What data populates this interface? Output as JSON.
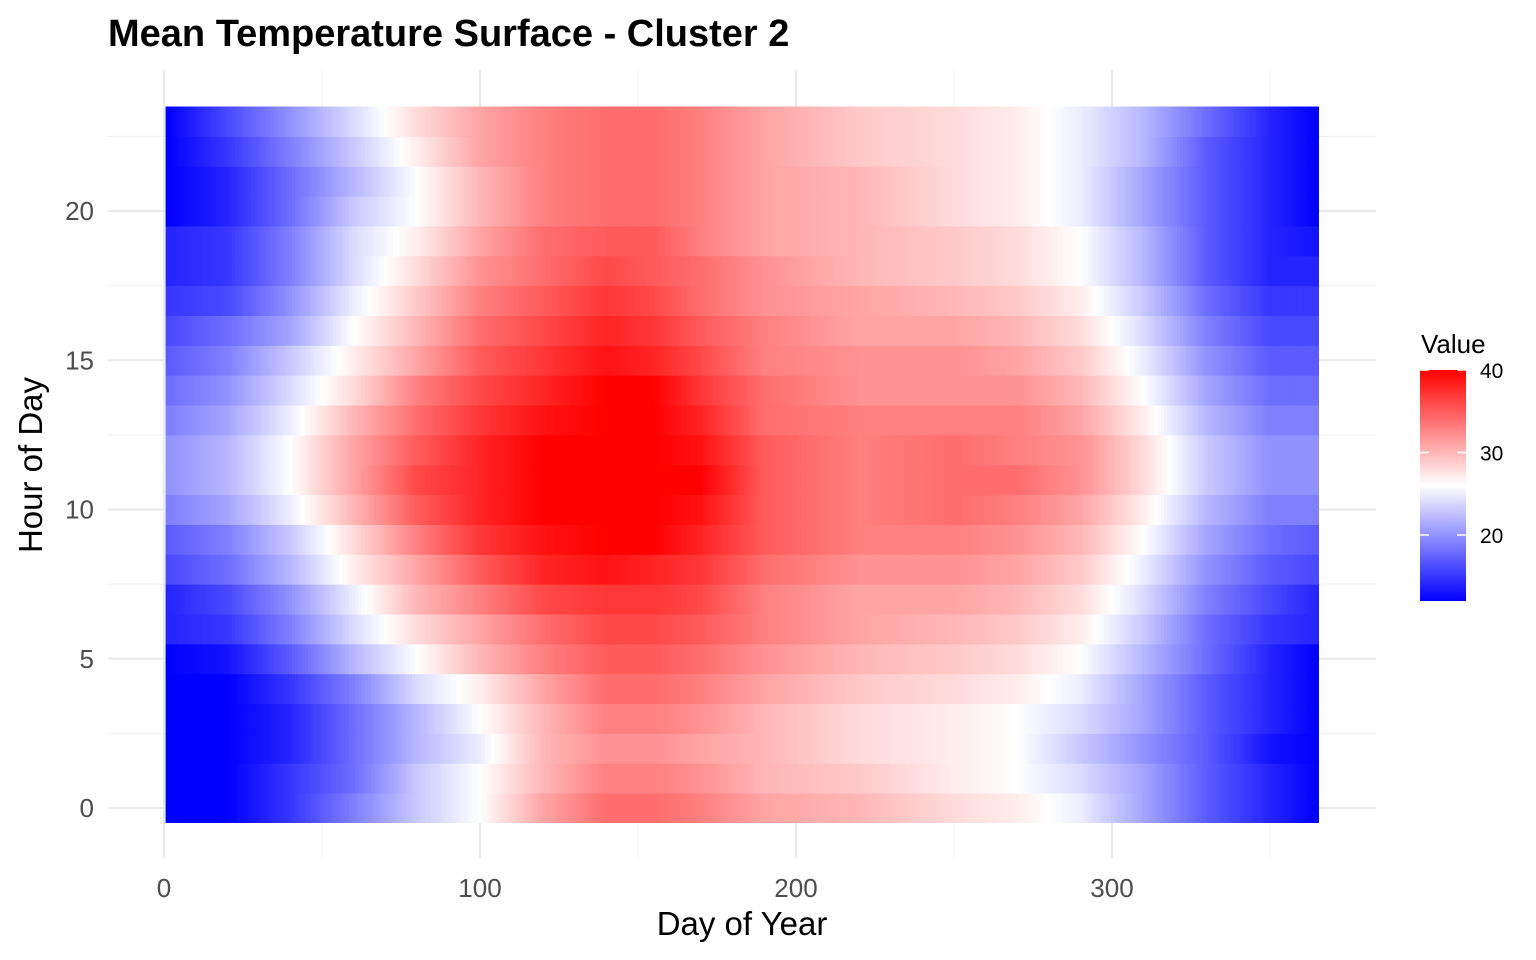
{
  "chart_data": {
    "type": "heatmap",
    "title": "Mean Temperature Surface - Cluster 2",
    "xlabel": "Day of Year",
    "ylabel": "Hour of Day",
    "xlim": [
      0,
      384
    ],
    "ylim": [
      -0.5,
      23.5
    ],
    "x_range": [
      1,
      365
    ],
    "y_range": [
      0,
      23
    ],
    "x_ticks": [
      0,
      100,
      200,
      300
    ],
    "y_ticks": [
      0,
      5,
      10,
      15,
      20
    ],
    "grid": true,
    "legend": {
      "title": "Value",
      "position": "right",
      "limits": [
        12,
        40
      ],
      "midpoint": 26,
      "breaks": [
        20,
        30,
        40
      ],
      "low_color": "#0000ff",
      "mid_color": "#ffffff",
      "high_color": "#ff0000"
    },
    "hours": [
      0,
      1,
      2,
      3,
      4,
      5,
      6,
      7,
      8,
      9,
      10,
      11,
      12,
      13,
      14,
      15,
      16,
      17,
      18,
      19,
      20,
      21,
      22,
      23
    ],
    "days": [
      1,
      20,
      40,
      60,
      80,
      100,
      120,
      140,
      155,
      170,
      190,
      220,
      250,
      270,
      290,
      310,
      330,
      350,
      365
    ],
    "values": [
      [
        12,
        12,
        15,
        19,
        23,
        26,
        31,
        34,
        34,
        33,
        31,
        30,
        28,
        27,
        25,
        21,
        17,
        14,
        12
      ],
      [
        12,
        12,
        15,
        18,
        23,
        26,
        30,
        33,
        33,
        32,
        30,
        29,
        27,
        26,
        24,
        21,
        17,
        14,
        12
      ],
      [
        12,
        12,
        14,
        18,
        22,
        25,
        30,
        32,
        32,
        31,
        30,
        28,
        27,
        26,
        23,
        20,
        17,
        13,
        12
      ],
      [
        12,
        12,
        14,
        18,
        22,
        26,
        30,
        33,
        33,
        32,
        30,
        28,
        27,
        26,
        24,
        21,
        17,
        14,
        12
      ],
      [
        12,
        12,
        15,
        19,
        24,
        27,
        31,
        34,
        34,
        33,
        31,
        29,
        28,
        27,
        25,
        21,
        17,
        14,
        12
      ],
      [
        12,
        13,
        17,
        22,
        26,
        30,
        33,
        35,
        35,
        34,
        32,
        30,
        29,
        28,
        26,
        22,
        18,
        14,
        12
      ],
      [
        14,
        15,
        19,
        24,
        28,
        31,
        34,
        36,
        36,
        35,
        33,
        31,
        30,
        29,
        27,
        23,
        18,
        15,
        14
      ],
      [
        14,
        16,
        20,
        25,
        30,
        33,
        36,
        37,
        37,
        36,
        33,
        31,
        31,
        30,
        28,
        24,
        19,
        16,
        14
      ],
      [
        16,
        18,
        22,
        27,
        31,
        35,
        38,
        39,
        38,
        37,
        34,
        32,
        32,
        31,
        29,
        25,
        20,
        17,
        16
      ],
      [
        17,
        19,
        23,
        28,
        33,
        37,
        39,
        40,
        40,
        38,
        35,
        33,
        33,
        32,
        30,
        26,
        21,
        18,
        17
      ],
      [
        19,
        21,
        25,
        30,
        35,
        38,
        40,
        40,
        40,
        39,
        35,
        33,
        34,
        33,
        31,
        27,
        22,
        19,
        19
      ],
      [
        20,
        22,
        26,
        31,
        36,
        38,
        40,
        40,
        40,
        40,
        35,
        33,
        34,
        34,
        32,
        28,
        23,
        20,
        20
      ],
      [
        20,
        22,
        26,
        31,
        35,
        38,
        40,
        40,
        40,
        39,
        35,
        33,
        34,
        33,
        32,
        28,
        23,
        20,
        20
      ],
      [
        19,
        21,
        25,
        30,
        34,
        37,
        39,
        40,
        40,
        38,
        34,
        33,
        33,
        33,
        31,
        27,
        22,
        19,
        19
      ],
      [
        18,
        20,
        24,
        28,
        33,
        36,
        38,
        40,
        40,
        37,
        34,
        32,
        32,
        32,
        30,
        26,
        21,
        18,
        18
      ],
      [
        17,
        19,
        23,
        27,
        31,
        35,
        37,
        39,
        38,
        36,
        33,
        32,
        32,
        31,
        29,
        25,
        20,
        17,
        17
      ],
      [
        16,
        18,
        21,
        26,
        30,
        34,
        36,
        38,
        37,
        35,
        33,
        31,
        31,
        30,
        28,
        24,
        19,
        16,
        16
      ],
      [
        15,
        16,
        20,
        25,
        29,
        33,
        35,
        37,
        36,
        34,
        32,
        31,
        30,
        29,
        27,
        23,
        18,
        15,
        15
      ],
      [
        14,
        15,
        19,
        24,
        28,
        32,
        34,
        36,
        35,
        34,
        32,
        30,
        29,
        28,
        26,
        22,
        17,
        14,
        14
      ],
      [
        14,
        15,
        19,
        24,
        27,
        31,
        34,
        35,
        35,
        33,
        31,
        30,
        29,
        28,
        26,
        22,
        17,
        14,
        13
      ],
      [
        12,
        14,
        18,
        23,
        26,
        30,
        33,
        34,
        34,
        33,
        31,
        30,
        28,
        27,
        25,
        21,
        17,
        14,
        12
      ],
      [
        12,
        14,
        18,
        22,
        26,
        30,
        33,
        34,
        34,
        33,
        31,
        30,
        28,
        27,
        25,
        21,
        17,
        14,
        12
      ],
      [
        12,
        15,
        19,
        23,
        27,
        31,
        33,
        34,
        34,
        33,
        31,
        29,
        28,
        27,
        25,
        22,
        17,
        14,
        12
      ],
      [
        12,
        16,
        20,
        24,
        28,
        31,
        33,
        34,
        34,
        33,
        31,
        29,
        28,
        27,
        25,
        22,
        18,
        14,
        12
      ]
    ]
  }
}
